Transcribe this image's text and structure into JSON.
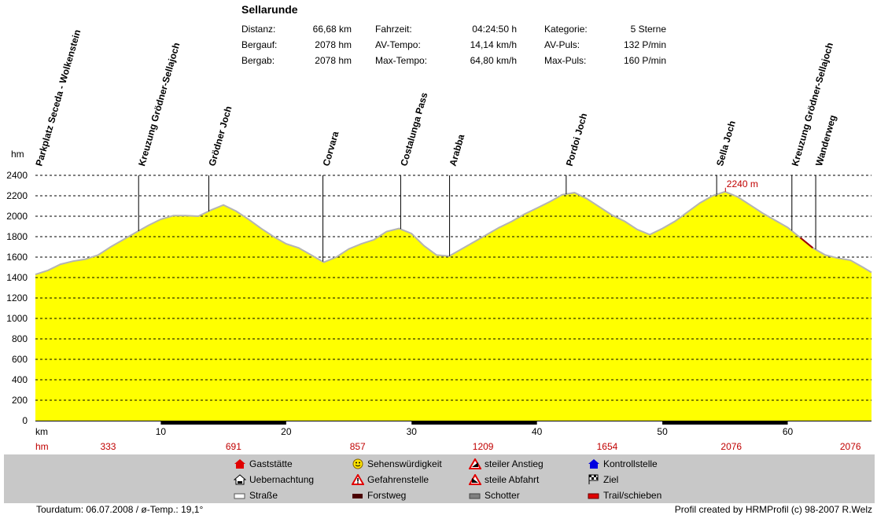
{
  "title": "Sellarunde",
  "stats": [
    {
      "label": "Distanz:",
      "value": "66,68 km"
    },
    {
      "label": "Bergauf:",
      "value": "2078 hm"
    },
    {
      "label": "Bergab:",
      "value": "2078 hm"
    },
    {
      "label": "Fahrzeit:",
      "value": "04:24:50 h"
    },
    {
      "label": "AV-Tempo:",
      "value": "14,14 km/h"
    },
    {
      "label": "Max-Tempo:",
      "value": "64,80 km/h"
    },
    {
      "label": "Kategorie:",
      "value": "5 Sterne"
    },
    {
      "label": "AV-Puls:",
      "value": "132 P/min"
    },
    {
      "label": "Max-Puls:",
      "value": "160 P/min"
    }
  ],
  "chart_data": {
    "type": "area",
    "xlabel": "km",
    "ylabel": "hm",
    "xlim": [
      0,
      66.68
    ],
    "ylim": [
      0,
      2400
    ],
    "y_ticks": [
      "0",
      "200",
      "400",
      "600",
      "800",
      "1000",
      "1200",
      "1400",
      "1600",
      "1800",
      "2000",
      "2200",
      "2400"
    ],
    "x_ticks": [
      "10",
      "20",
      "30",
      "40",
      "50",
      "60"
    ],
    "grid": true,
    "fill_color": "#ffff00",
    "line_color": "#b4b4b4",
    "max_label": "2240 m",
    "profile": {
      "x": [
        0,
        1,
        2,
        3,
        4,
        5,
        6,
        7,
        8,
        9,
        10,
        11,
        12,
        13,
        14,
        15,
        16,
        17,
        18,
        19,
        20,
        21,
        22,
        23,
        24,
        25,
        26,
        27,
        28,
        29,
        30,
        31,
        32,
        33,
        34,
        35,
        36,
        37,
        38,
        39,
        40,
        41,
        42,
        43,
        44,
        45,
        46,
        47,
        48,
        49,
        50,
        51,
        52,
        53,
        54,
        55,
        56,
        57,
        58,
        59,
        60,
        61,
        62,
        63,
        64,
        65,
        66,
        66.68
      ],
      "y": [
        1430,
        1470,
        1530,
        1560,
        1580,
        1620,
        1700,
        1770,
        1840,
        1910,
        1970,
        2005,
        2005,
        2000,
        2060,
        2110,
        2050,
        1970,
        1880,
        1800,
        1730,
        1690,
        1620,
        1550,
        1600,
        1680,
        1730,
        1770,
        1850,
        1880,
        1830,
        1710,
        1620,
        1610,
        1680,
        1750,
        1820,
        1890,
        1950,
        2020,
        2080,
        2140,
        2210,
        2230,
        2170,
        2090,
        2010,
        1950,
        1870,
        1820,
        1880,
        1950,
        2040,
        2130,
        2200,
        2240,
        2190,
        2110,
        2030,
        1960,
        1890,
        1790,
        1690,
        1620,
        1590,
        1570,
        1500,
        1450
      ]
    },
    "waypoints": [
      {
        "name": "Parkplatz Seceda - Wolkenstein",
        "km": 0
      },
      {
        "name": "Kreuzung Grödner-Sellajoch",
        "km": 8.2
      },
      {
        "name": "Grödner Joch",
        "km": 13.8
      },
      {
        "name": "Corvara",
        "km": 22.9
      },
      {
        "name": "Costalunga Pass",
        "km": 29.1
      },
      {
        "name": "Arabba",
        "km": 33.0
      },
      {
        "name": "Pordoi Joch",
        "km": 42.3
      },
      {
        "name": "Sella Joch",
        "km": 54.3
      },
      {
        "name": "Kreuzung Grödner-Sellajoch",
        "km": 60.3
      },
      {
        "name": "Wanderweg",
        "km": 62.2
      }
    ],
    "hm_row_label": "hm",
    "hm_row": [
      {
        "km": 5.8,
        "value": "333"
      },
      {
        "km": 15.8,
        "value": "691"
      },
      {
        "km": 25.7,
        "value": "857"
      },
      {
        "km": 35.7,
        "value": "1209"
      },
      {
        "km": 45.6,
        "value": "1654"
      },
      {
        "km": 55.5,
        "value": "2076"
      },
      {
        "km": 65.0,
        "value": "2076"
      }
    ],
    "surface_bars": [
      {
        "from": 10,
        "to": 20,
        "type": "Forstweg"
      },
      {
        "from": 30,
        "to": 40,
        "type": "Forstweg"
      },
      {
        "from": 50,
        "to": 60,
        "type": "Forstweg"
      }
    ],
    "trail_segments": [
      {
        "from": 60.9,
        "to": 62.2
      }
    ]
  },
  "legend": [
    {
      "label": "Gaststätte",
      "icon": "house-red-icon"
    },
    {
      "label": "Uebernachtung",
      "icon": "house-bed-icon"
    },
    {
      "label": "Straße",
      "icon": "road-white-icon"
    },
    {
      "label": "Sehenswürdigkeit",
      "icon": "smiley-icon"
    },
    {
      "label": "Gefahrenstelle",
      "icon": "warning-triangle-icon"
    },
    {
      "label": "Forstweg",
      "icon": "forest-road-icon"
    },
    {
      "label": "steiler Anstieg",
      "icon": "steep-ascent-icon"
    },
    {
      "label": "steile Abfahrt",
      "icon": "steep-descent-icon"
    },
    {
      "label": "Schotter",
      "icon": "gravel-icon"
    },
    {
      "label": "Kontrollstelle",
      "icon": "checkpoint-blue-icon"
    },
    {
      "label": "Ziel",
      "icon": "finish-flag-icon"
    },
    {
      "label": "Trail/schieben",
      "icon": "trail-red-icon"
    }
  ],
  "footer": {
    "left": "Tourdatum: 06.07.2008  /  ø-Temp.: 19,1°",
    "right": "Profil created by HRMProfil (c) 98-2007 R.Welz"
  }
}
